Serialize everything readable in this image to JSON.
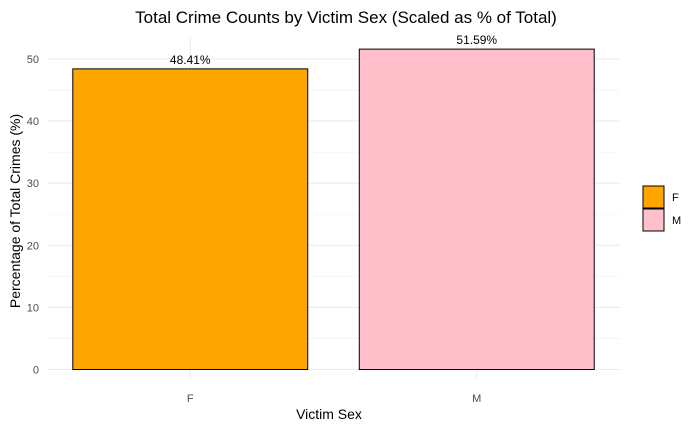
{
  "chart_data": {
    "type": "bar",
    "title": "Total Crime Counts by Victim Sex (Scaled as % of Total)",
    "xlabel": "Victim Sex",
    "ylabel": "Percentage of Total Crimes (%)",
    "categories": [
      "F",
      "M"
    ],
    "values": [
      48.41,
      51.59
    ],
    "data_labels": [
      "48.41%",
      "51.59%"
    ],
    "ylim": [
      0,
      52
    ],
    "yticks": [
      0,
      10,
      20,
      30,
      40,
      50
    ],
    "grid": true,
    "legend": {
      "placement": "right",
      "entries": [
        {
          "label": "F",
          "color": "#FFA500"
        },
        {
          "label": "M",
          "color": "#FFC0CB"
        }
      ]
    },
    "colors": [
      "#FFA500",
      "#FFC0CB"
    ]
  }
}
